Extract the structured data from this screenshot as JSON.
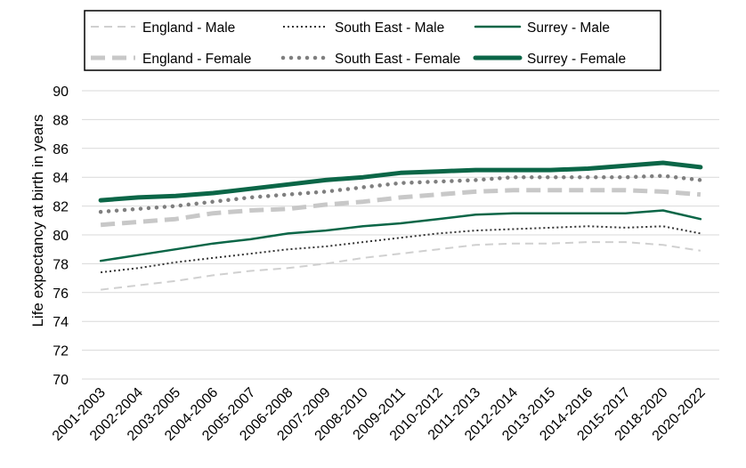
{
  "chart_data": {
    "type": "line",
    "xlabel": "",
    "ylabel": "Life expectancy at birth in years",
    "ylim": [
      70,
      90
    ],
    "yticks": [
      70,
      72,
      74,
      76,
      78,
      80,
      82,
      84,
      86,
      88,
      90
    ],
    "grid": true,
    "legend_position": "top",
    "categories": [
      "2001-2003",
      "2002-2004",
      "2003-2005",
      "2004-2006",
      "2005-2007",
      "2006-2008",
      "2007-2009",
      "2008-2010",
      "2009-2011",
      "2010-2012",
      "2011-2013",
      "2012-2014",
      "2013-2015",
      "2014-2016",
      "2015-2017",
      "2018-2020",
      "2020-2022"
    ],
    "series": [
      {
        "name": "England - Male",
        "color": "#d0d0d0",
        "style": "dashed-thin",
        "values": [
          76.2,
          76.5,
          76.8,
          77.2,
          77.5,
          77.7,
          78.0,
          78.4,
          78.7,
          79.0,
          79.3,
          79.4,
          79.4,
          79.5,
          79.5,
          79.3,
          78.9
        ]
      },
      {
        "name": "England - Female",
        "color": "#c8c8c8",
        "style": "dashed-thick",
        "values": [
          80.7,
          80.9,
          81.1,
          81.5,
          81.7,
          81.8,
          82.1,
          82.3,
          82.6,
          82.8,
          83.0,
          83.1,
          83.1,
          83.1,
          83.1,
          83.0,
          82.8
        ]
      },
      {
        "name": "South East - Male",
        "color": "#333333",
        "style": "dotted-thin",
        "values": [
          77.4,
          77.7,
          78.1,
          78.4,
          78.7,
          79.0,
          79.2,
          79.5,
          79.8,
          80.1,
          80.3,
          80.4,
          80.5,
          80.6,
          80.5,
          80.6,
          80.1
        ]
      },
      {
        "name": "South East - Female",
        "color": "#7f7f7f",
        "style": "dotted-thick",
        "values": [
          81.6,
          81.8,
          82.0,
          82.3,
          82.6,
          82.8,
          83.0,
          83.3,
          83.6,
          83.7,
          83.8,
          84.0,
          84.0,
          84.0,
          84.0,
          84.1,
          83.8
        ]
      },
      {
        "name": "Surrey - Male",
        "color": "#0b6647",
        "style": "solid-thin",
        "values": [
          78.2,
          78.6,
          79.0,
          79.4,
          79.7,
          80.1,
          80.3,
          80.6,
          80.8,
          81.1,
          81.4,
          81.5,
          81.5,
          81.5,
          81.5,
          81.7,
          81.1
        ]
      },
      {
        "name": "Surrey - Female",
        "color": "#0b6647",
        "style": "solid-thick",
        "values": [
          82.4,
          82.6,
          82.7,
          82.9,
          83.2,
          83.5,
          83.8,
          84.0,
          84.3,
          84.4,
          84.5,
          84.5,
          84.5,
          84.6,
          84.8,
          85.0,
          84.7
        ]
      }
    ],
    "legend_order": [
      [
        "England - Male",
        "South East - Male",
        "Surrey - Male"
      ],
      [
        "England - Female",
        "South East - Female",
        "Surrey - Female"
      ]
    ]
  }
}
